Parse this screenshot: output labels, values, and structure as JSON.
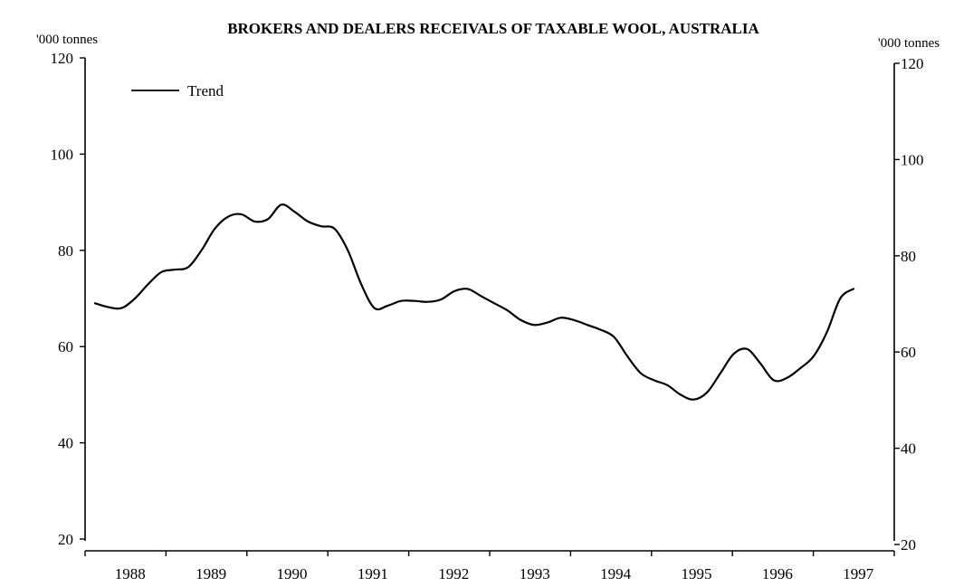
{
  "chart_data": {
    "type": "line",
    "title": "BROKERS AND DEALERS RECEIVALS OF TAXABLE WOOL, AUSTRALIA",
    "y_unit_left": "'000 tonnes",
    "y_unit_right": "'000 tonnes",
    "ylim": [
      20,
      120
    ],
    "y_ticks": [
      20,
      40,
      60,
      80,
      100,
      120
    ],
    "x_tick_labels": [
      "1988",
      "1989",
      "1990",
      "1991",
      "1992",
      "1993",
      "1994",
      "1995",
      "1996",
      "1997"
    ],
    "grid": false,
    "legend_position": "top-left",
    "series": [
      {
        "name": "Trend",
        "color": "#000000",
        "values": [
          69.0,
          68.2,
          68.0,
          70.0,
          73.0,
          75.5,
          76.0,
          76.5,
          80.0,
          84.5,
          87.0,
          87.5,
          86.0,
          86.5,
          89.5,
          88.0,
          86.0,
          85.0,
          84.5,
          80.0,
          73.0,
          68.0,
          68.5,
          69.5,
          69.5,
          69.3,
          69.8,
          71.5,
          72.0,
          70.5,
          69.0,
          67.5,
          65.5,
          64.5,
          65.0,
          66.0,
          65.5,
          64.5,
          63.5,
          62.0,
          58.0,
          54.5,
          53.0,
          52.0,
          50.0,
          49.0,
          50.5,
          54.5,
          58.5,
          59.5,
          56.5,
          53.0,
          53.5,
          55.5,
          58.0,
          63.0,
          70.0,
          72.0
        ]
      }
    ]
  }
}
